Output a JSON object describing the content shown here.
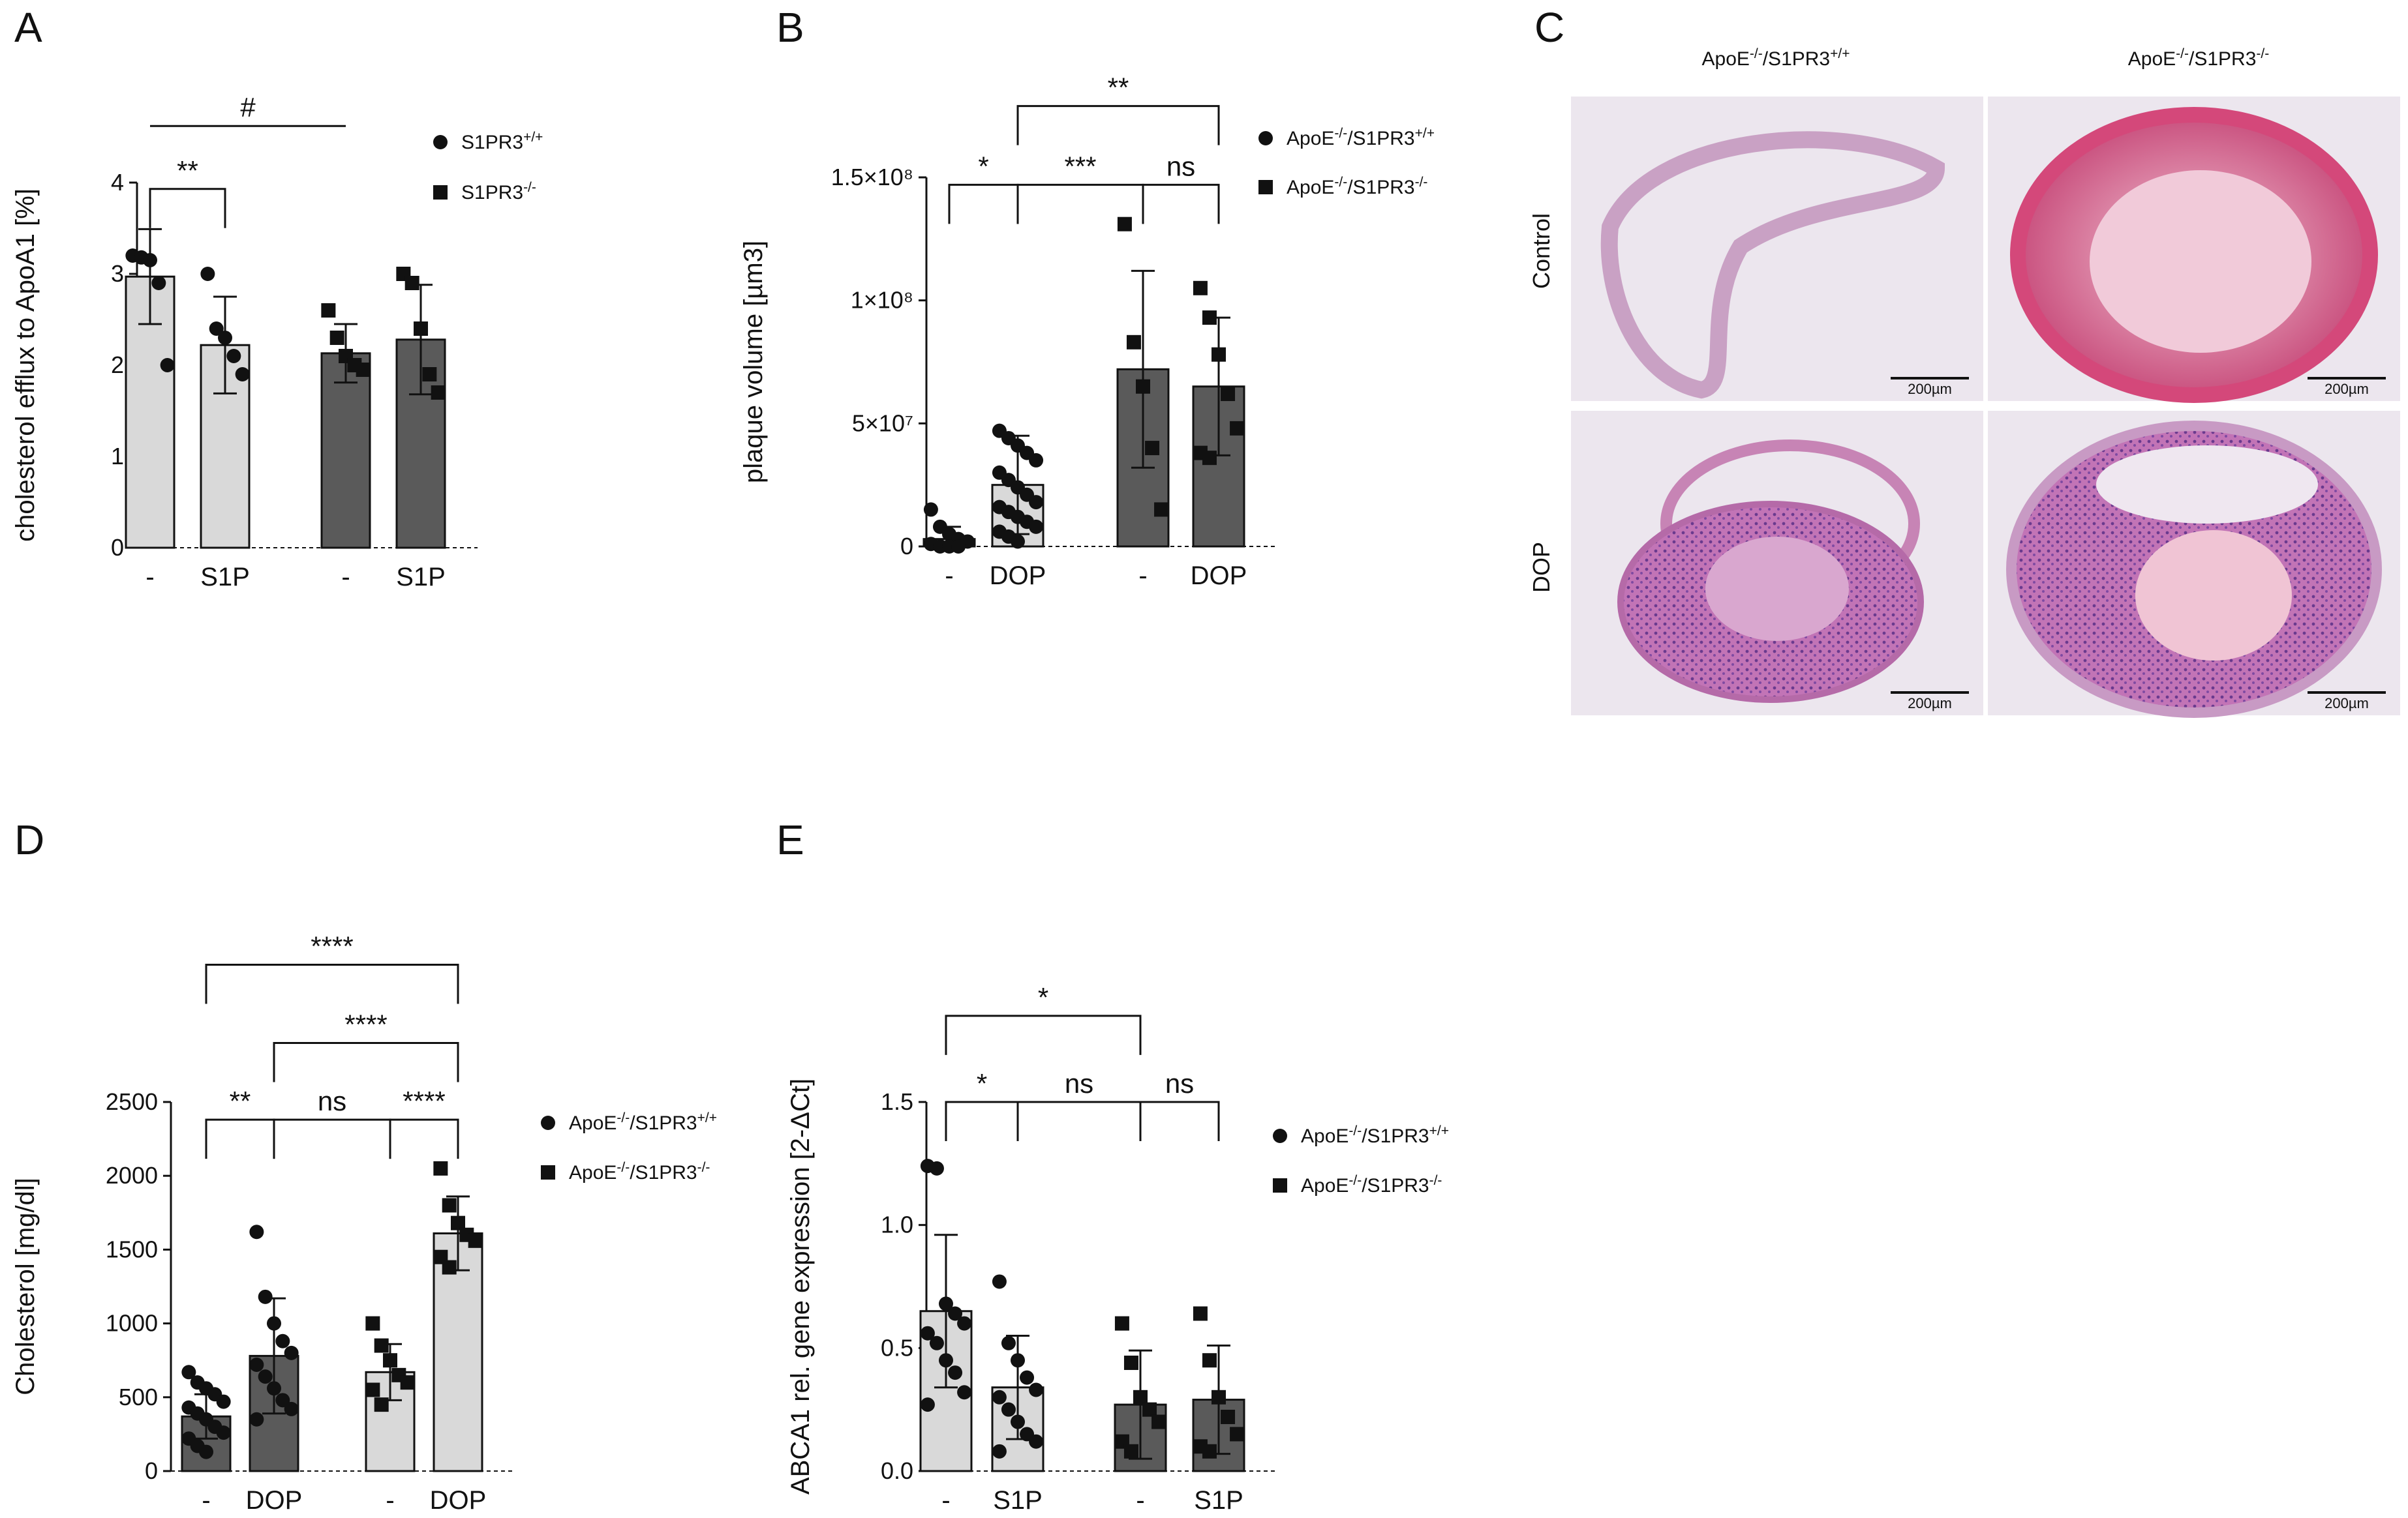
{
  "chart_data": [
    {
      "panel": "A",
      "type": "bar",
      "ylabel": "cholesterol efflux to ApoA1 [%]",
      "ylim": [
        0,
        4
      ],
      "yticks": [
        0,
        1,
        2,
        3,
        4
      ],
      "categories": [
        "-",
        "S1P",
        "-",
        "S1P"
      ],
      "bar_colors": [
        "#d9d9d9",
        "#d9d9d9",
        "#5a5a5a",
        "#5a5a5a"
      ],
      "bars": [
        {
          "value": 2.97,
          "sd": 0.52,
          "marker": "circle",
          "points": [
            3.2,
            3.18,
            3.15,
            2.9,
            2.0
          ]
        },
        {
          "value": 2.22,
          "sd": 0.53,
          "marker": "circle",
          "points": [
            3.0,
            2.4,
            2.3,
            2.1,
            1.9
          ]
        },
        {
          "value": 2.13,
          "sd": 0.32,
          "marker": "square",
          "points": [
            2.6,
            2.3,
            2.1,
            2.0,
            1.95
          ]
        },
        {
          "value": 2.28,
          "sd": 0.6,
          "marker": "square",
          "points": [
            3.0,
            2.9,
            2.4,
            1.9,
            1.7
          ]
        }
      ],
      "legend": [
        {
          "marker": "circle",
          "label": "S1PR3+/+"
        },
        {
          "marker": "square",
          "label": "S1PR3-/-"
        }
      ],
      "significance": [
        {
          "label": "**",
          "from": 0,
          "to": 1,
          "y": 3.93
        },
        {
          "label": "#",
          "from": 0,
          "to": 2,
          "y": 4.62,
          "style": "line"
        }
      ]
    },
    {
      "panel": "B",
      "type": "bar",
      "ylabel": "plaque volume [µm3]",
      "ylim": [
        0,
        150000000
      ],
      "yticks": [
        0,
        50000000,
        100000000,
        150000000
      ],
      "ytick_labels": [
        "0",
        "5×10⁷",
        "1×10⁸",
        "1.5×10⁸"
      ],
      "categories": [
        "-",
        "DOP",
        "-",
        "DOP"
      ],
      "bar_colors": [
        "#d9d9d9",
        "#d9d9d9",
        "#5a5a5a",
        "#5a5a5a"
      ],
      "bars": [
        {
          "value": 3000000,
          "sd": 5000000,
          "marker": "circle",
          "points": [
            15000000,
            8000000,
            5000000,
            3000000,
            2000000,
            1000000,
            0,
            0,
            0
          ]
        },
        {
          "value": 25000000,
          "sd": 20000000,
          "marker": "circle",
          "points": [
            47000000,
            44000000,
            41000000,
            38000000,
            35000000,
            30000000,
            27000000,
            24000000,
            21000000,
            18000000,
            16000000,
            14000000,
            12000000,
            10000000,
            8000000,
            6000000,
            4000000,
            2000000
          ]
        },
        {
          "value": 72000000,
          "sd": 40000000,
          "marker": "square",
          "points": [
            131000000,
            83000000,
            65000000,
            40000000,
            15000000
          ]
        },
        {
          "value": 65000000,
          "sd": 28000000,
          "marker": "square",
          "points": [
            105000000,
            93000000,
            78000000,
            62000000,
            48000000,
            38000000,
            36000000
          ]
        }
      ],
      "legend": [
        {
          "marker": "circle",
          "label": "ApoE-/-/S1PR3+/+"
        },
        {
          "marker": "square",
          "label": "ApoE-/-/S1PR3-/-"
        }
      ],
      "significance": [
        {
          "label": "*",
          "from": 0,
          "to": 1,
          "y": 147000000
        },
        {
          "label": "***",
          "from": 1,
          "to": 2,
          "y": 147000000
        },
        {
          "label": "ns",
          "from": 2,
          "to": 3,
          "y": 147000000
        },
        {
          "label": "**",
          "from": 1,
          "to": 3,
          "y": 179000000
        }
      ]
    },
    {
      "panel": "D",
      "type": "bar",
      "ylabel": "Cholesterol [mg/dl]",
      "ylim": [
        0,
        2500
      ],
      "yticks": [
        0,
        500,
        1000,
        1500,
        2000,
        2500
      ],
      "categories": [
        "-",
        "DOP",
        "-",
        "DOP"
      ],
      "bar_colors": [
        "#5a5a5a",
        "#5a5a5a",
        "#d9d9d9",
        "#d9d9d9"
      ],
      "bars": [
        {
          "value": 370,
          "sd": 150,
          "marker": "circle",
          "points": [
            670,
            600,
            560,
            520,
            470,
            430,
            390,
            350,
            300,
            260,
            220,
            170,
            130
          ]
        },
        {
          "value": 780,
          "sd": 390,
          "marker": "circle",
          "points": [
            1620,
            1180,
            1000,
            880,
            800,
            720,
            640,
            560,
            480,
            420,
            350
          ]
        },
        {
          "value": 670,
          "sd": 190,
          "marker": "square",
          "points": [
            1000,
            850,
            750,
            650,
            600,
            550,
            450
          ]
        },
        {
          "value": 1610,
          "sd": 250,
          "marker": "square",
          "points": [
            2050,
            1800,
            1680,
            1600,
            1560,
            1450,
            1380
          ]
        }
      ],
      "legend": [
        {
          "marker": "circle",
          "label": "ApoE-/-/S1PR3+/+"
        },
        {
          "marker": "square",
          "label": "ApoE-/-/S1PR3-/-"
        }
      ],
      "significance": [
        {
          "label": "**",
          "from": 0,
          "to": 1,
          "y": 2380
        },
        {
          "label": "ns",
          "from": 1,
          "to": 2,
          "y": 2380
        },
        {
          "label": "****",
          "from": 2,
          "to": 3,
          "y": 2380
        },
        {
          "label": "****",
          "from": 1,
          "to": 3,
          "y": 2900
        },
        {
          "label": "****",
          "from": 0,
          "to": 3,
          "y": 3430
        }
      ]
    },
    {
      "panel": "E",
      "type": "bar",
      "ylabel": "ABCA1  rel. gene expression [2-ΔCt]",
      "ylim": [
        0,
        1.5
      ],
      "yticks": [
        0,
        0.5,
        1.0,
        1.5
      ],
      "ytick_labels": [
        "0.0",
        "0.5",
        "1.0",
        "1.5"
      ],
      "categories": [
        "-",
        "S1P",
        "-",
        "S1P"
      ],
      "bar_colors": [
        "#d9d9d9",
        "#d9d9d9",
        "#5a5a5a",
        "#5a5a5a"
      ],
      "bars": [
        {
          "value": 0.65,
          "sd": 0.31,
          "marker": "circle",
          "points": [
            1.24,
            1.23,
            0.68,
            0.64,
            0.6,
            0.56,
            0.52,
            0.45,
            0.4,
            0.32,
            0.27
          ]
        },
        {
          "value": 0.34,
          "sd": 0.21,
          "marker": "circle",
          "points": [
            0.77,
            0.52,
            0.45,
            0.38,
            0.33,
            0.3,
            0.25,
            0.2,
            0.15,
            0.12,
            0.08
          ]
        },
        {
          "value": 0.27,
          "sd": 0.22,
          "marker": "square",
          "points": [
            0.6,
            0.44,
            0.3,
            0.25,
            0.2,
            0.12,
            0.08
          ]
        },
        {
          "value": 0.29,
          "sd": 0.22,
          "marker": "square",
          "points": [
            0.64,
            0.45,
            0.3,
            0.22,
            0.15,
            0.1,
            0.08
          ]
        }
      ],
      "legend": [
        {
          "marker": "circle",
          "label": "ApoE-/-/S1PR3+/+"
        },
        {
          "marker": "square",
          "label": "ApoE-/-/S1PR3-/-"
        }
      ],
      "significance": [
        {
          "label": "*",
          "from": 0,
          "to": 1,
          "y": 1.5
        },
        {
          "label": "ns",
          "from": 1,
          "to": 2,
          "y": 1.5
        },
        {
          "label": "ns",
          "from": 2,
          "to": 3,
          "y": 1.5
        },
        {
          "label": "*",
          "from": 0,
          "to": 2,
          "y": 1.85
        }
      ]
    }
  ],
  "histology": {
    "panel": "C",
    "column_headers": [
      "ApoE-/-/S1PR3+/+",
      "ApoE-/-/S1PR3-/-"
    ],
    "row_labels": [
      "Control",
      "DOP"
    ],
    "scale_bar_label": "200µm"
  }
}
